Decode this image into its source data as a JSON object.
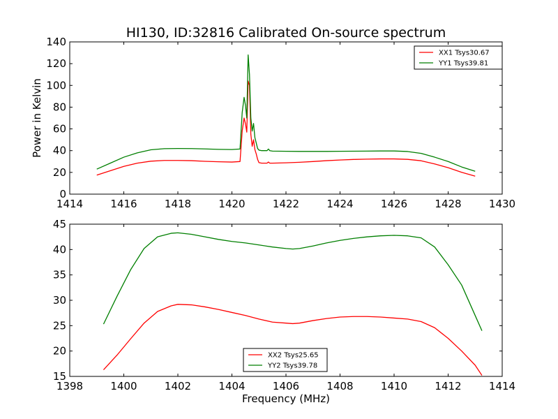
{
  "title": "HI130, ID:32816 Calibrated On-source spectrum",
  "colors": {
    "red": "#ff0000",
    "green": "#007f00"
  },
  "chart_data": [
    {
      "type": "line",
      "ylabel": "Power in Kelvin",
      "xlabel": "",
      "xlim": [
        1414,
        1430
      ],
      "ylim": [
        0,
        140
      ],
      "xticks": [
        "1414",
        "1416",
        "1418",
        "1420",
        "1422",
        "1424",
        "1426",
        "1428",
        "1430"
      ],
      "yticks": [
        "0",
        "20",
        "40",
        "60",
        "80",
        "100",
        "120",
        "140"
      ],
      "legend_position": "top-right",
      "series": [
        {
          "name": "XX1 Tsys30.67",
          "color": "#ff0000",
          "x": [
            1415.0,
            1415.5,
            1416.0,
            1416.5,
            1417.0,
            1417.5,
            1418.0,
            1418.5,
            1419.0,
            1419.5,
            1420.0,
            1420.3,
            1420.38,
            1420.45,
            1420.5,
            1420.55,
            1420.6,
            1420.65,
            1420.7,
            1420.75,
            1420.8,
            1420.85,
            1420.9,
            1420.95,
            1421.0,
            1421.1,
            1421.2,
            1421.3,
            1421.35,
            1421.4,
            1421.5,
            1422.0,
            1422.5,
            1423.0,
            1423.5,
            1424.0,
            1424.5,
            1425.0,
            1425.5,
            1426.0,
            1426.5,
            1427.0,
            1427.5,
            1428.0,
            1428.5,
            1429.0
          ],
          "y": [
            17.5,
            21.5,
            25.5,
            28.5,
            30.3,
            31.0,
            31.0,
            30.8,
            30.2,
            29.8,
            29.5,
            30.0,
            58.0,
            70.0,
            65.0,
            57.0,
            104.0,
            100.0,
            55.0,
            44.0,
            50.0,
            41.0,
            37.0,
            32.0,
            29.0,
            28.5,
            28.5,
            28.5,
            29.5,
            28.5,
            28.5,
            28.8,
            29.3,
            30.0,
            30.8,
            31.4,
            31.9,
            32.2,
            32.4,
            32.4,
            32.0,
            30.7,
            27.8,
            24.3,
            20.1,
            16.5
          ]
        },
        {
          "name": "YY1 Tsys39.81",
          "color": "#007f00",
          "x": [
            1415.0,
            1415.5,
            1416.0,
            1416.5,
            1417.0,
            1417.5,
            1418.0,
            1418.5,
            1419.0,
            1419.5,
            1420.0,
            1420.3,
            1420.38,
            1420.45,
            1420.5,
            1420.55,
            1420.6,
            1420.65,
            1420.7,
            1420.75,
            1420.8,
            1420.85,
            1420.9,
            1420.95,
            1421.0,
            1421.1,
            1421.2,
            1421.3,
            1421.35,
            1421.4,
            1421.5,
            1422.0,
            1422.5,
            1423.0,
            1423.5,
            1424.0,
            1424.5,
            1425.0,
            1425.5,
            1426.0,
            1426.5,
            1427.0,
            1427.5,
            1428.0,
            1428.5,
            1429.0
          ],
          "y": [
            23.0,
            28.5,
            34.0,
            38.0,
            40.8,
            41.8,
            42.0,
            41.9,
            41.6,
            41.2,
            41.0,
            41.5,
            75.0,
            89.0,
            82.0,
            70.0,
            128.0,
            110.0,
            70.0,
            58.0,
            65.0,
            52.0,
            47.0,
            42.0,
            40.5,
            40.0,
            40.0,
            40.0,
            41.5,
            40.0,
            39.6,
            39.4,
            39.3,
            39.3,
            39.3,
            39.4,
            39.5,
            39.6,
            39.7,
            39.7,
            39.2,
            37.5,
            34.0,
            30.0,
            25.0,
            21.0
          ]
        }
      ]
    },
    {
      "type": "line",
      "ylabel": "",
      "xlabel": "Frequency (MHz)",
      "xlim": [
        1398,
        1414
      ],
      "ylim": [
        15,
        45
      ],
      "xticks": [
        "1398",
        "1400",
        "1402",
        "1404",
        "1406",
        "1408",
        "1410",
        "1412",
        "1414"
      ],
      "yticks": [
        "15",
        "20",
        "25",
        "30",
        "35",
        "40",
        "45"
      ],
      "legend_position": "lower-center",
      "series": [
        {
          "name": "XX2 Tsys25.65",
          "color": "#ff0000",
          "x": [
            1399.25,
            1399.75,
            1400.25,
            1400.75,
            1401.25,
            1401.75,
            1402.0,
            1402.5,
            1403.0,
            1403.5,
            1404.0,
            1404.5,
            1405.0,
            1405.5,
            1406.0,
            1406.25,
            1406.5,
            1407.0,
            1407.5,
            1408.0,
            1408.5,
            1409.0,
            1409.5,
            1410.0,
            1410.5,
            1411.0,
            1411.5,
            1412.0,
            1412.5,
            1413.0,
            1413.25
          ],
          "y": [
            16.3,
            19.2,
            22.4,
            25.5,
            27.8,
            28.9,
            29.2,
            29.1,
            28.7,
            28.2,
            27.6,
            27.0,
            26.3,
            25.7,
            25.5,
            25.4,
            25.5,
            26.0,
            26.4,
            26.7,
            26.8,
            26.8,
            26.7,
            26.5,
            26.3,
            25.8,
            24.6,
            22.5,
            20.0,
            17.2,
            15.2
          ]
        },
        {
          "name": "YY2 Tsys39.78",
          "color": "#007f00",
          "x": [
            1399.25,
            1399.75,
            1400.25,
            1400.75,
            1401.25,
            1401.75,
            1402.0,
            1402.5,
            1403.0,
            1403.5,
            1404.0,
            1404.5,
            1405.0,
            1405.5,
            1406.0,
            1406.25,
            1406.5,
            1407.0,
            1407.5,
            1408.0,
            1408.5,
            1409.0,
            1409.5,
            1410.0,
            1410.5,
            1411.0,
            1411.5,
            1412.0,
            1412.5,
            1413.0,
            1413.25
          ],
          "y": [
            25.3,
            30.8,
            36.0,
            40.2,
            42.5,
            43.2,
            43.3,
            43.0,
            42.5,
            42.0,
            41.6,
            41.3,
            40.9,
            40.5,
            40.2,
            40.1,
            40.2,
            40.7,
            41.3,
            41.8,
            42.2,
            42.5,
            42.7,
            42.8,
            42.7,
            42.3,
            40.5,
            37.0,
            33.0,
            27.0,
            24.0
          ]
        }
      ]
    }
  ]
}
